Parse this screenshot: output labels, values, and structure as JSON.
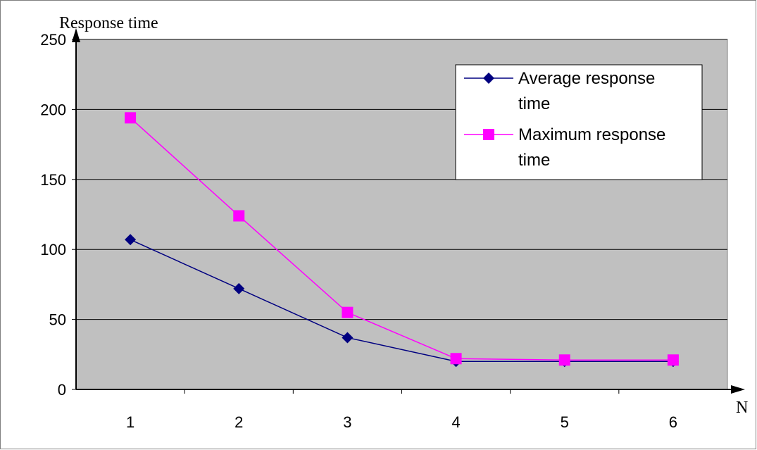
{
  "chart_data": {
    "type": "line",
    "ylabel": "Response time",
    "xlabel": "N",
    "categories": [
      "1",
      "2",
      "3",
      "4",
      "5",
      "6"
    ],
    "ylim": [
      0,
      250
    ],
    "yticks": [
      "0",
      "50",
      "100",
      "150",
      "200",
      "250"
    ],
    "grid": "horizontal",
    "legend_position": "top-right",
    "series": [
      {
        "name": "Average response time",
        "legend_lines": [
          "Average response",
          "time"
        ],
        "values": [
          107,
          72,
          37,
          20,
          20,
          20
        ],
        "color": "#000080",
        "marker": "diamond"
      },
      {
        "name": "Maximum response time",
        "legend_lines": [
          "Maximum response",
          "time"
        ],
        "values": [
          194,
          124,
          55,
          22,
          21,
          21
        ],
        "color": "#ff00ff",
        "marker": "square"
      }
    ],
    "colors": {
      "plot_background": "#c0c0c0",
      "gridline": "#000000",
      "frame": "#808080"
    }
  }
}
